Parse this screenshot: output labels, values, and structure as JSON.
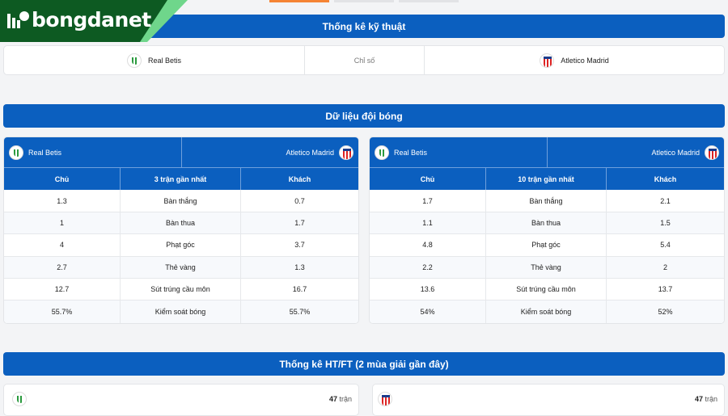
{
  "brand": {
    "name": "bongdanet"
  },
  "colors": {
    "primary": "#0b5fbf",
    "brand_green": "#0d5a22",
    "active_tab": "#f58434"
  },
  "tech": {
    "title": "Thống kê kỹ thuật",
    "home": "Real Betis",
    "label": "Chỉ số",
    "away": "Atletico Madrid"
  },
  "team_data": {
    "title": "Dữ liệu đội bóng",
    "tables": [
      {
        "home": "Real Betis",
        "away": "Atletico Madrid",
        "headers": [
          "Chủ",
          "3 trận gần nhất",
          "Khách"
        ],
        "rows": [
          [
            "1.3",
            "Bàn thắng",
            "0.7"
          ],
          [
            "1",
            "Bàn thua",
            "1.7"
          ],
          [
            "4",
            "Phạt góc",
            "3.7"
          ],
          [
            "2.7",
            "Thẻ vàng",
            "1.3"
          ],
          [
            "12.7",
            "Sút trúng cầu môn",
            "16.7"
          ],
          [
            "55.7%",
            "Kiểm soát bóng",
            "55.7%"
          ]
        ]
      },
      {
        "home": "Real Betis",
        "away": "Atletico Madrid",
        "headers": [
          "Chủ",
          "10 trận gần nhất",
          "Khách"
        ],
        "rows": [
          [
            "1.7",
            "Bàn thắng",
            "2.1"
          ],
          [
            "1.1",
            "Bàn thua",
            "1.5"
          ],
          [
            "4.8",
            "Phạt góc",
            "5.4"
          ],
          [
            "2.2",
            "Thẻ vàng",
            "2"
          ],
          [
            "13.6",
            "Sút trúng cầu môn",
            "13.7"
          ],
          [
            "54%",
            "Kiểm soát bóng",
            "52%"
          ]
        ]
      }
    ]
  },
  "htft": {
    "title": "Thống kê HT/FT (2 mùa giải gần đây)",
    "home_count": "47",
    "away_count": "47",
    "unit": "trận"
  }
}
